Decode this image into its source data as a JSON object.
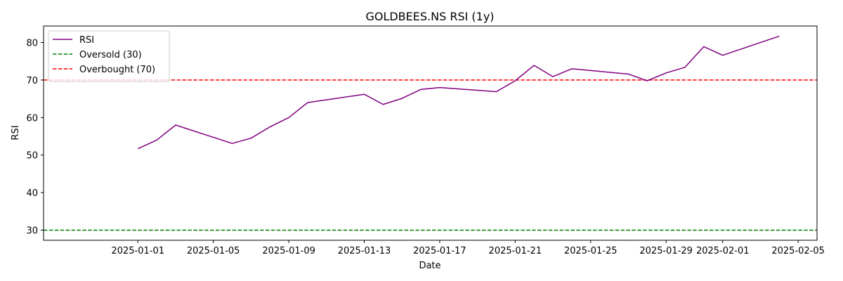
{
  "chart_data": {
    "type": "line",
    "title": "GOLDBEES.NS RSI (1y)",
    "xlabel": "Date",
    "ylabel": "RSI",
    "ylim": [
      27.3,
      84.4
    ],
    "xlim": [
      "2024-12-27",
      "2025-02-06"
    ],
    "x_ticks": [
      "2025-01-01",
      "2025-01-05",
      "2025-01-09",
      "2025-01-13",
      "2025-01-17",
      "2025-01-21",
      "2025-01-25",
      "2025-01-29",
      "2025-02-01",
      "2025-02-05"
    ],
    "y_ticks": [
      30,
      40,
      50,
      60,
      70,
      80
    ],
    "grid": false,
    "legend_position": "top-left",
    "series": [
      {
        "name": "RSI",
        "color": "#800080",
        "style": "solid",
        "points": [
          {
            "x": "2025-01-01",
            "y": 51.7
          },
          {
            "x": "2025-01-02",
            "y": 54.0
          },
          {
            "x": "2025-01-03",
            "y": 58.0
          },
          {
            "x": "2025-01-06",
            "y": 53.1
          },
          {
            "x": "2025-01-07",
            "y": 54.5
          },
          {
            "x": "2025-01-08",
            "y": 57.5
          },
          {
            "x": "2025-01-09",
            "y": 60.0
          },
          {
            "x": "2025-01-10",
            "y": 64.0
          },
          {
            "x": "2025-01-13",
            "y": 66.2
          },
          {
            "x": "2025-01-14",
            "y": 63.5
          },
          {
            "x": "2025-01-15",
            "y": 65.1
          },
          {
            "x": "2025-01-16",
            "y": 67.5
          },
          {
            "x": "2025-01-17",
            "y": 68.0
          },
          {
            "x": "2025-01-20",
            "y": 66.9
          },
          {
            "x": "2025-01-21",
            "y": 69.8
          },
          {
            "x": "2025-01-22",
            "y": 73.9
          },
          {
            "x": "2025-01-23",
            "y": 70.9
          },
          {
            "x": "2025-01-24",
            "y": 73.0
          },
          {
            "x": "2025-01-27",
            "y": 71.6
          },
          {
            "x": "2025-01-28",
            "y": 69.8
          },
          {
            "x": "2025-01-29",
            "y": 71.9
          },
          {
            "x": "2025-01-30",
            "y": 73.4
          },
          {
            "x": "2025-01-31",
            "y": 78.9
          },
          {
            "x": "2025-02-01",
            "y": 76.6
          },
          {
            "x": "2025-02-04",
            "y": 81.7
          }
        ]
      },
      {
        "name": "Oversold (30)",
        "color": "#008000",
        "style": "dashed",
        "hline": 30
      },
      {
        "name": "Overbought (70)",
        "color": "#ff0000",
        "style": "dashed",
        "hline": 70
      }
    ]
  }
}
